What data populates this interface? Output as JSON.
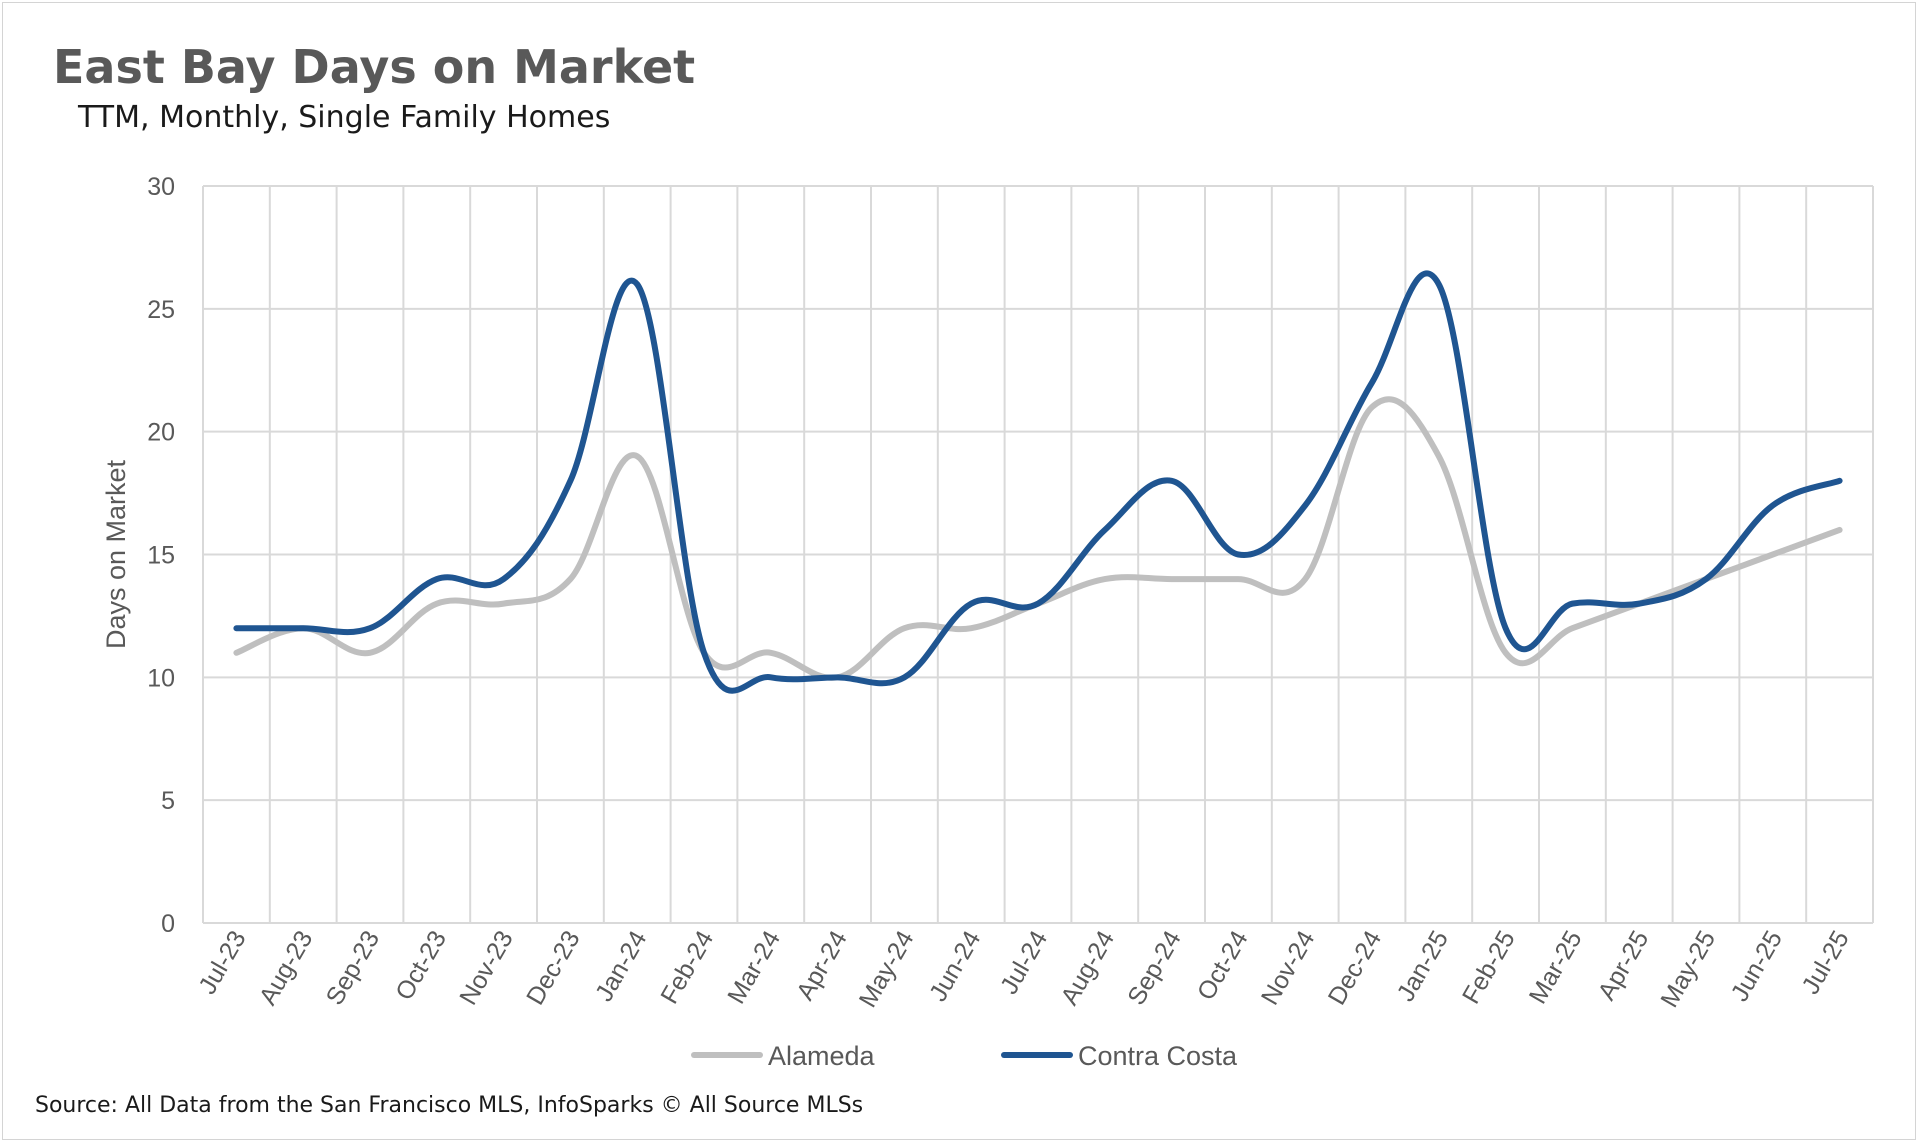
{
  "chart_data": {
    "type": "line",
    "title": "East Bay Days on Market",
    "subtitle": "TTM, Monthly, Single Family Homes",
    "xlabel": "",
    "ylabel": "Days on Market",
    "ylim": [
      0,
      30
    ],
    "yticks": [
      0,
      5,
      10,
      15,
      20,
      25,
      30
    ],
    "grid": true,
    "legend_position": "bottom",
    "categories": [
      "Jul-23",
      "Aug-23",
      "Sep-23",
      "Oct-23",
      "Nov-23",
      "Dec-23",
      "Jan-24",
      "Feb-24",
      "Mar-24",
      "Apr-24",
      "May-24",
      "Jun-24",
      "Jul-24",
      "Aug-24",
      "Sep-24",
      "Oct-24",
      "Nov-24",
      "Dec-24",
      "Jan-25",
      "Feb-25",
      "Mar-25",
      "Apr-25",
      "May-25",
      "Jun-25",
      "Jul-25"
    ],
    "series": [
      {
        "name": "Alameda",
        "color": "#bfbfbf",
        "values": [
          11,
          12,
          11,
          13,
          13,
          14,
          19,
          11,
          11,
          10,
          12,
          12,
          13,
          14,
          14,
          14,
          14,
          21,
          19,
          11,
          12,
          13,
          14,
          15,
          16
        ]
      },
      {
        "name": "Contra Costa",
        "color": "#1f5591",
        "values": [
          12,
          12,
          12,
          14,
          14,
          18,
          26,
          11,
          10,
          10,
          10,
          13,
          13,
          16,
          18,
          15,
          17,
          22,
          26,
          12,
          13,
          13,
          14,
          17,
          18
        ]
      }
    ]
  },
  "source_text": "Source: All Data from the San Francisco MLS, InfoSparks © All Source MLSs"
}
